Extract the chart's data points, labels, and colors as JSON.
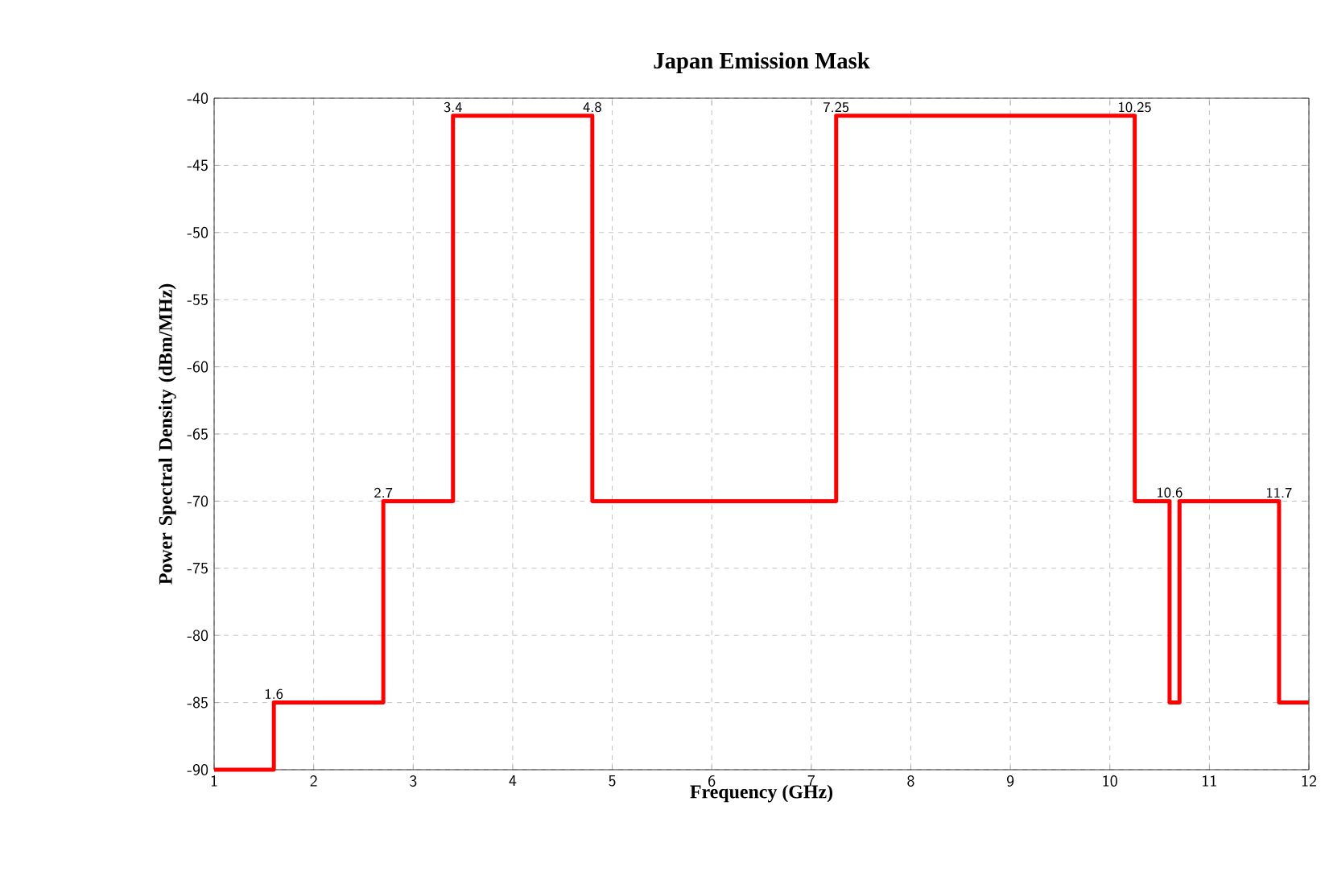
{
  "chart_data": {
    "type": "line",
    "title": "Japan Emission Mask",
    "xlabel": "Frequency (GHz)",
    "ylabel": "Power Spectral Density (dBm/MHz)",
    "x": [
      1,
      1.6,
      1.6,
      2.7,
      2.7,
      3.4,
      3.4,
      4.8,
      4.8,
      7.25,
      7.25,
      10.25,
      10.25,
      10.6,
      10.6,
      10.7,
      10.7,
      11.7,
      11.7,
      12
    ],
    "values": [
      -90,
      -90,
      -85,
      -85,
      -70,
      -70,
      -41.3,
      -41.3,
      -70,
      -70,
      -41.3,
      -41.3,
      -70,
      -70,
      -85,
      -85,
      -70,
      -70,
      -85,
      -85
    ],
    "color": "#ff0000",
    "xlim": [
      1,
      12
    ],
    "ylim": [
      -90,
      -40
    ],
    "xticks": [
      1,
      2,
      3,
      4,
      5,
      6,
      7,
      8,
      9,
      10,
      11,
      12
    ],
    "yticks": [
      -90,
      -85,
      -80,
      -75,
      -70,
      -65,
      -60,
      -55,
      -50,
      -45,
      -40
    ],
    "grid": true,
    "annotations": [
      {
        "text": "1.6",
        "x": 1.6,
        "y": -85
      },
      {
        "text": "2.7",
        "x": 2.7,
        "y": -70
      },
      {
        "text": "3.4",
        "x": 3.4,
        "y": -41.3
      },
      {
        "text": "4.8",
        "x": 4.8,
        "y": -41.3
      },
      {
        "text": "7.25",
        "x": 7.25,
        "y": -41.3
      },
      {
        "text": "10.25",
        "x": 10.25,
        "y": -41.3
      },
      {
        "text": "10.6",
        "x": 10.6,
        "y": -70
      },
      {
        "text": "11.7",
        "x": 11.7,
        "y": -70
      }
    ]
  }
}
